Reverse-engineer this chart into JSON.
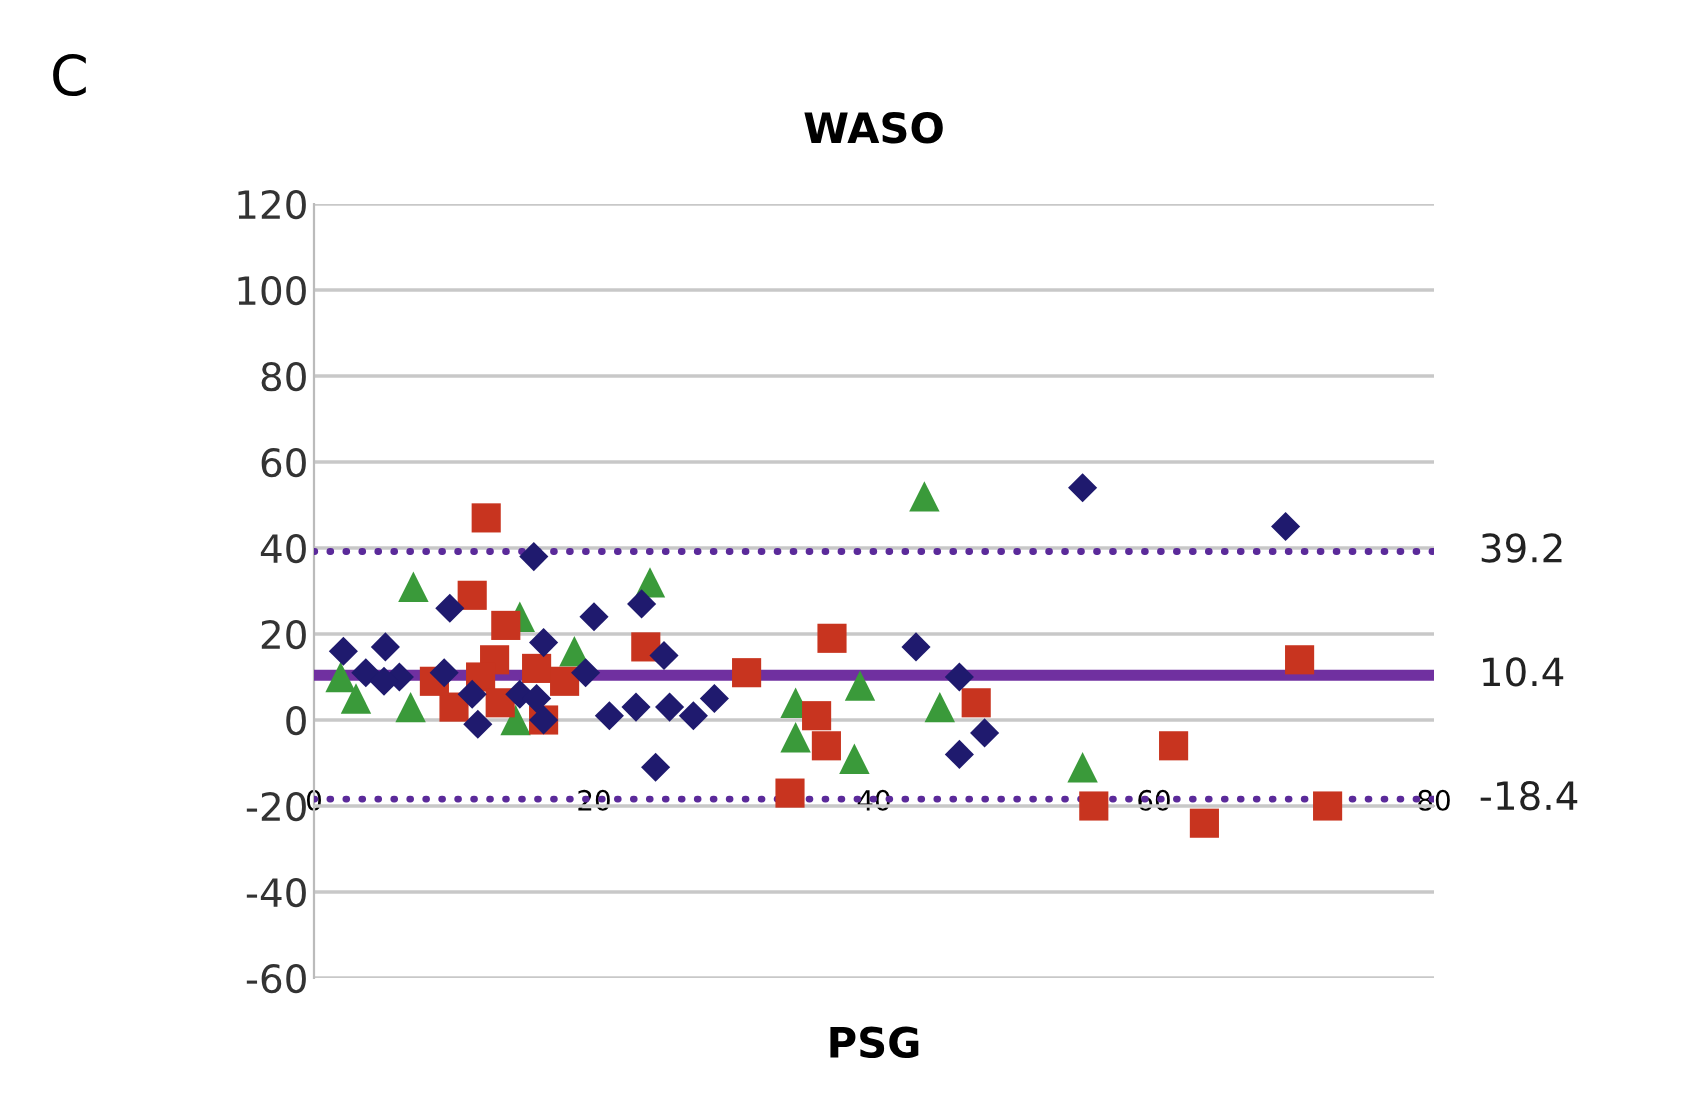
{
  "chart_data": {
    "type": "scatter",
    "title": "WASO",
    "xlabel": "PSG",
    "annotations": [
      "C"
    ],
    "xlim": [
      0,
      80
    ],
    "xticks": [
      0,
      20,
      40,
      60,
      80
    ],
    "ylim": [
      -60,
      120
    ],
    "yticks": [
      -60,
      -40,
      -20,
      0,
      20,
      40,
      60,
      80,
      100,
      120
    ],
    "grid": "y",
    "legend": false,
    "series": [
      {
        "color": "#1f1a6e",
        "marker": "diamond",
        "x": [
          2.1,
          3.7,
          5.1,
          6.1,
          5,
          9.7,
          9.3,
          11.3,
          11.7,
          15.7,
          16.4,
          14.7,
          15.9,
          16.4,
          19.4,
          20,
          21.1,
          23,
          23.4,
          25,
          24.4,
          25.4,
          27.1,
          28.6,
          43,
          46.1,
          47.9,
          46.1,
          54.9,
          69.4
        ],
        "values": [
          16,
          11,
          17,
          10,
          9,
          26,
          11,
          6,
          -1,
          38,
          18,
          6,
          5,
          0,
          11,
          24,
          1,
          3,
          27,
          15,
          -11,
          3,
          1,
          5,
          17,
          10,
          -3,
          -8,
          54,
          45
        ]
      },
      {
        "color": "#c8341f",
        "marker": "square",
        "x": [
          12.3,
          11.3,
          13.7,
          12.9,
          11.9,
          10,
          8.6,
          13.3,
          15.9,
          17.9,
          16.4,
          23.7,
          30.9,
          34,
          37,
          35.9,
          36.6,
          47.3,
          70.4,
          61.4,
          55.7,
          63.6,
          72.4
        ],
        "values": [
          47,
          29,
          22,
          14,
          10,
          3,
          9,
          4,
          12,
          9,
          0,
          17,
          11,
          -17,
          19,
          1,
          -6,
          4,
          14,
          -6,
          -20,
          -24,
          -20
        ]
      },
      {
        "color": "#3a9a3a",
        "marker": "triangle",
        "x": [
          7.1,
          1.9,
          3,
          6.9,
          14.7,
          18.6,
          14.4,
          24,
          34.4,
          34.4,
          39,
          38.6,
          44.7,
          43.6,
          54.9
        ],
        "values": [
          31,
          10,
          5,
          3,
          24,
          16,
          0,
          32,
          4,
          -4,
          8,
          -9,
          3,
          52,
          -11
        ]
      }
    ],
    "ref_lines": [
      {
        "axis": "y",
        "value": 39.2,
        "label": "39.2",
        "color": "#5b2a9a",
        "line_style": "dotted"
      },
      {
        "axis": "y",
        "value": 10.4,
        "label": "10.4",
        "color": "#7030a0",
        "line_style": "solid"
      },
      {
        "axis": "y",
        "value": -18.4,
        "label": "-18.4",
        "color": "#5b2a9a",
        "line_style": "dotted"
      }
    ]
  }
}
